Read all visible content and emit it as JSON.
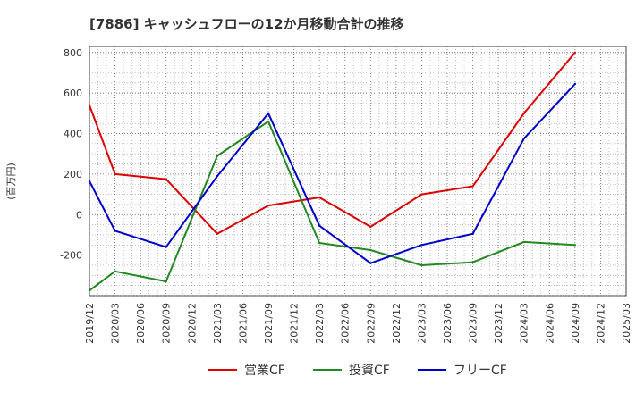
{
  "chart_data": {
    "type": "line",
    "title": "[7886]  キャッシュフローの12か月移動合計の推移",
    "ylabel": "(百万円)",
    "xlabel": "",
    "ylim": [
      -400,
      830
    ],
    "yticks": [
      800,
      600,
      400,
      200,
      0,
      -200
    ],
    "categories": [
      "2019/12",
      "2020/03",
      "2020/06",
      "2020/09",
      "2020/12",
      "2021/03",
      "2021/06",
      "2021/09",
      "2021/12",
      "2022/03",
      "2022/06",
      "2022/09",
      "2022/12",
      "2023/03",
      "2023/06",
      "2023/09",
      "2023/12",
      "2024/03",
      "2024/06",
      "2024/09",
      "2024/12",
      "2025/03"
    ],
    "grid": true,
    "legend_position": "bottom",
    "series": [
      {
        "name": "営業CF",
        "color": "#dd0000",
        "values": [
          540,
          200,
          null,
          175,
          null,
          -95,
          null,
          45,
          null,
          85,
          null,
          -60,
          null,
          100,
          null,
          140,
          null,
          500,
          null,
          800,
          null,
          null
        ]
      },
      {
        "name": "投資CF",
        "color": "#228822",
        "values": [
          -375,
          -280,
          null,
          -330,
          null,
          290,
          null,
          460,
          null,
          -140,
          null,
          -175,
          null,
          -250,
          null,
          -235,
          null,
          -135,
          null,
          -150,
          null,
          null
        ]
      },
      {
        "name": "フリーCF",
        "color": "#0000cc",
        "values": [
          165,
          -80,
          null,
          -160,
          null,
          190,
          null,
          500,
          null,
          -55,
          null,
          -240,
          null,
          -150,
          null,
          -95,
          null,
          375,
          null,
          645,
          null,
          null
        ]
      }
    ]
  }
}
